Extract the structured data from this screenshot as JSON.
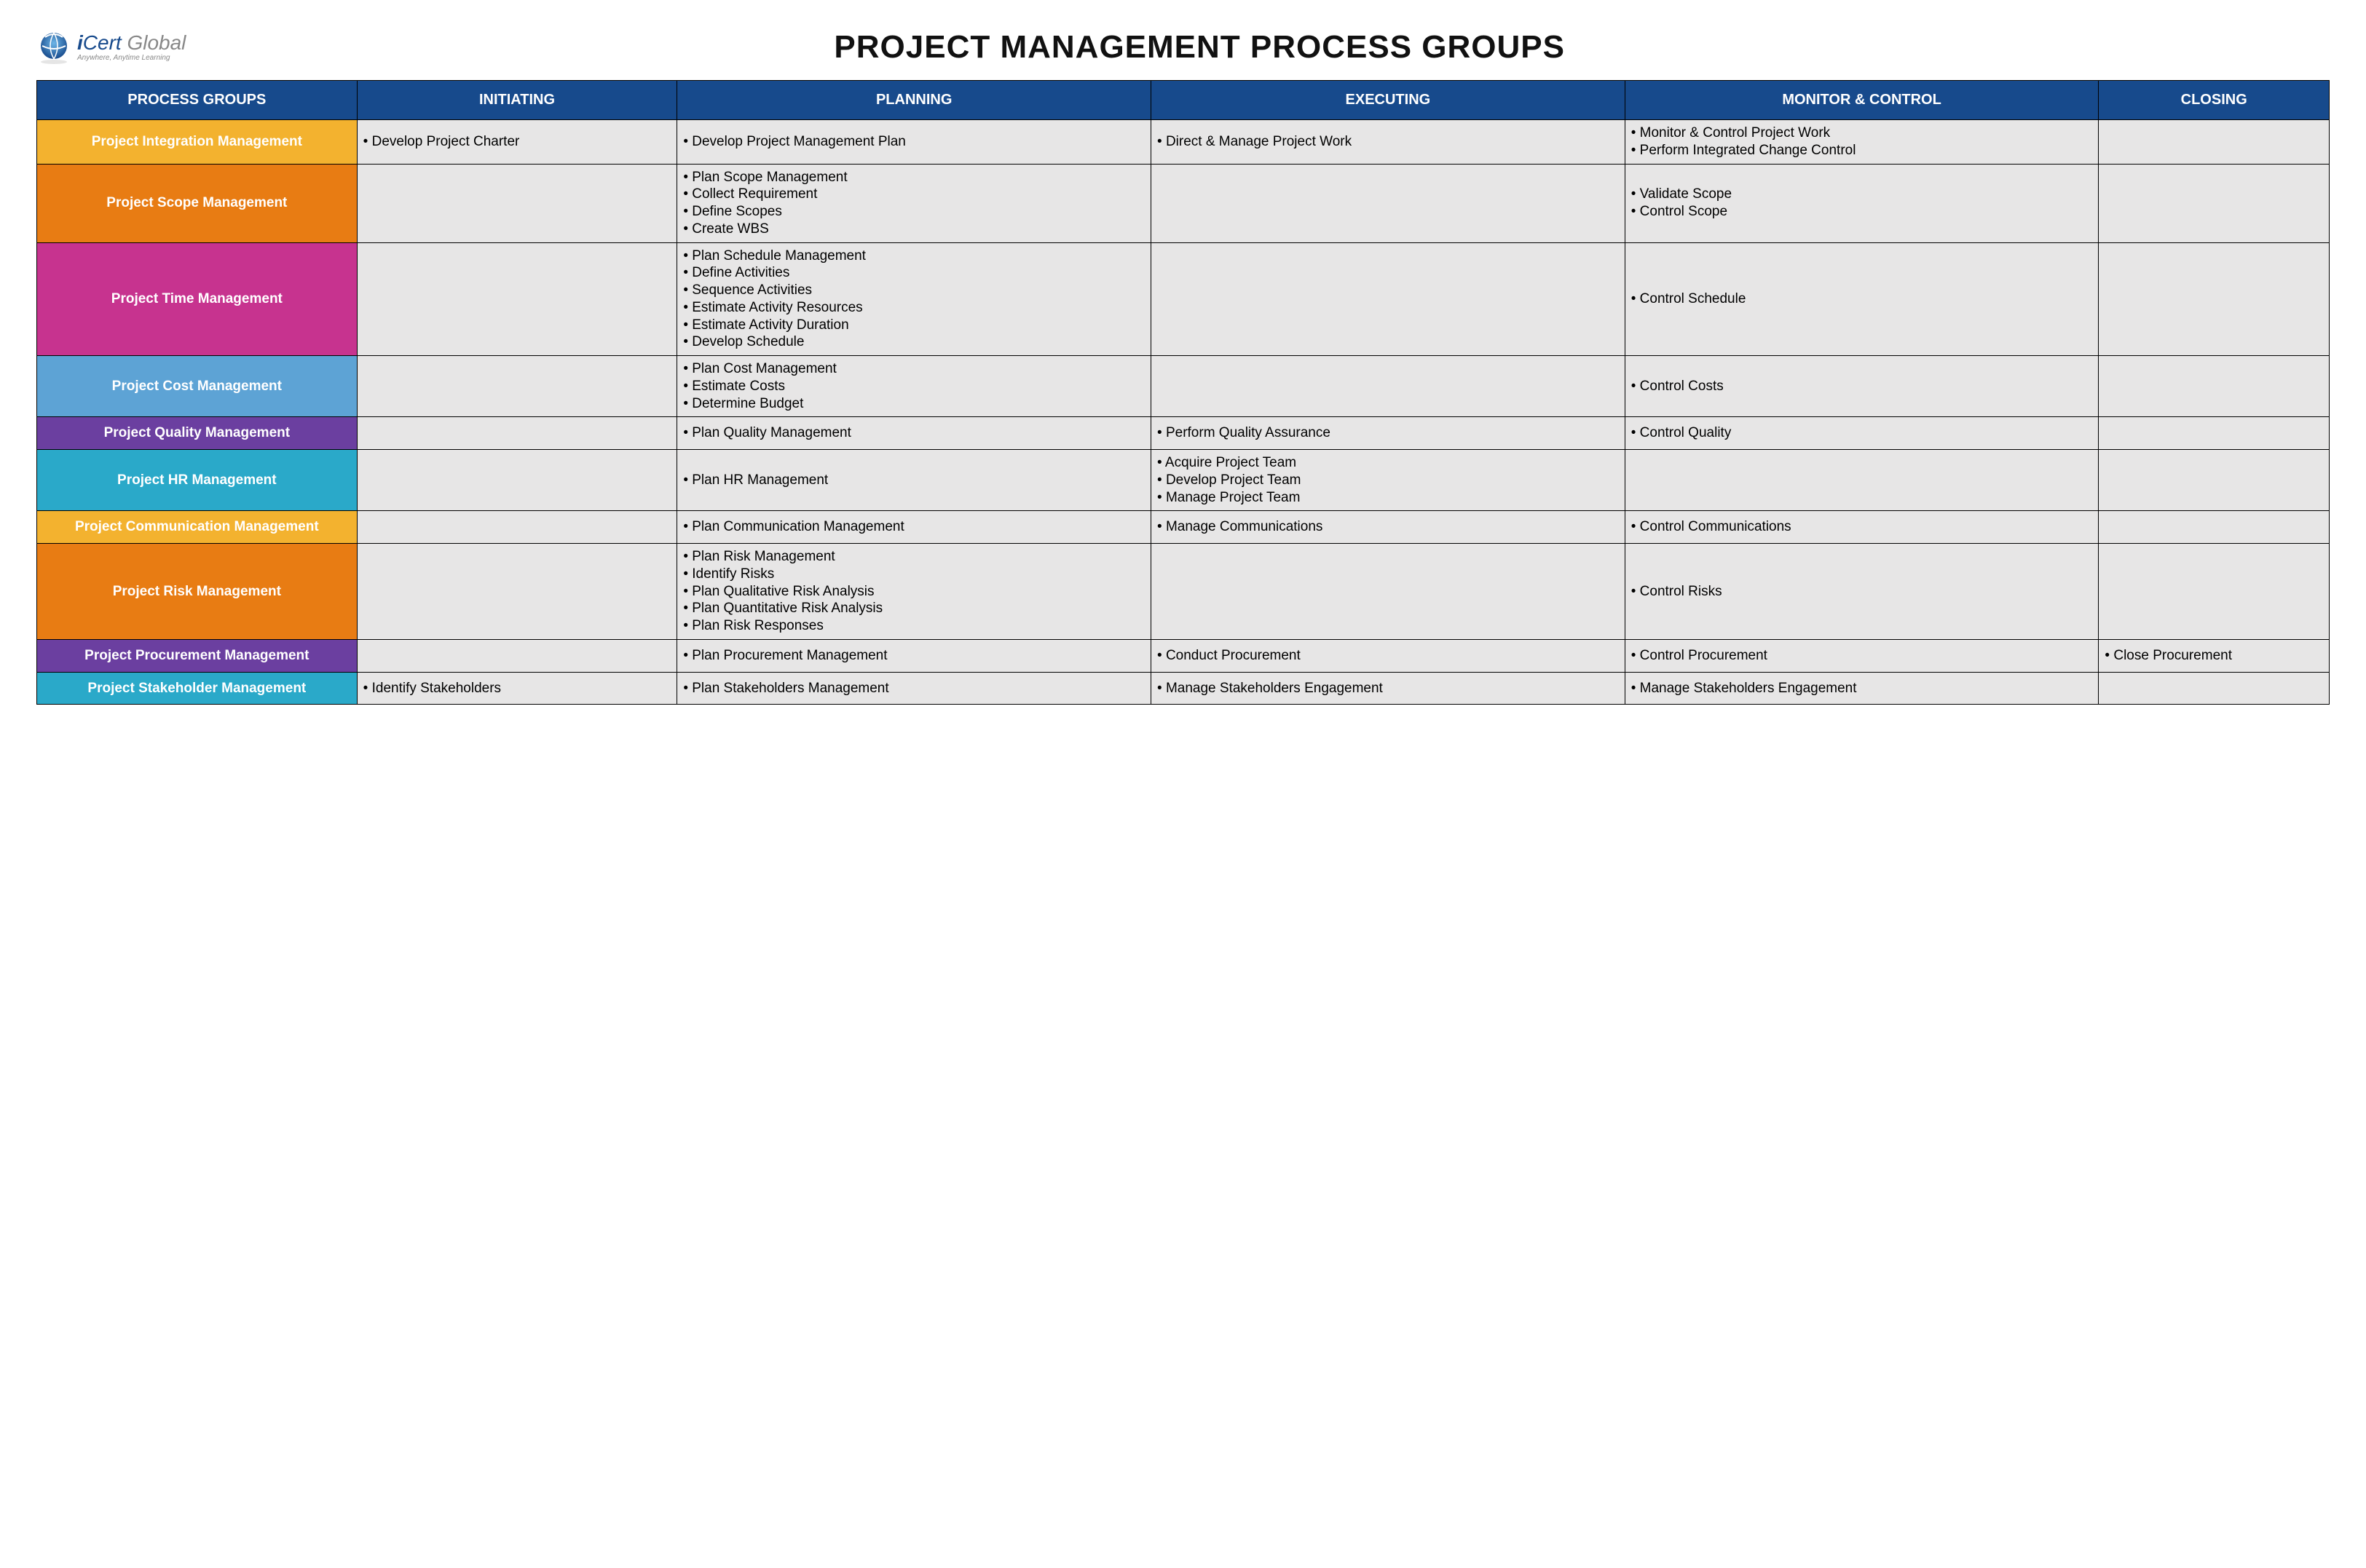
{
  "brand": {
    "name_i": "i",
    "name_cert": "Cert",
    "name_global": " Global",
    "tagline": "Anywhere, Anytime Learning"
  },
  "title": "PROJECT MANAGEMENT PROCESS GROUPS",
  "table": {
    "header_bg": "#174a8c",
    "header_fg": "#ffffff",
    "cell_bg": "#e7e6e6",
    "cell_fg": "#000000",
    "border_color": "#000000",
    "columns": [
      "PROCESS GROUPS",
      "INITIATING",
      "PLANNING",
      "EXECUTING",
      "MONITOR & CONTROL",
      "CLOSING"
    ],
    "rows": [
      {
        "label": "Project Integration Management",
        "color": "#f3b22f",
        "cells": [
          [
            "Develop Project Charter"
          ],
          [
            "Develop Project Management Plan"
          ],
          [
            "Direct & Manage Project Work"
          ],
          [
            "Monitor & Control Project Work",
            "Perform Integrated Change Control"
          ],
          []
        ]
      },
      {
        "label": "Project Scope Management",
        "color": "#e87c13",
        "cells": [
          [],
          [
            "Plan Scope Management",
            "Collect Requirement",
            "Define Scopes",
            "Create WBS"
          ],
          [],
          [
            "Validate Scope",
            "Control Scope"
          ],
          []
        ]
      },
      {
        "label": "Project Time Management",
        "color": "#c7338f",
        "cells": [
          [],
          [
            "Plan Schedule Management",
            "Define Activities",
            "Sequence Activities",
            "Estimate Activity Resources",
            "Estimate Activity Duration",
            "Develop Schedule"
          ],
          [],
          [
            "Control Schedule"
          ],
          []
        ]
      },
      {
        "label": "Project Cost Management",
        "color": "#5da3d5",
        "cells": [
          [],
          [
            "Plan Cost Management",
            "Estimate Costs",
            "Determine Budget"
          ],
          [],
          [
            "Control Costs"
          ],
          []
        ]
      },
      {
        "label": "Project Quality Management",
        "color": "#6b3fa0",
        "cells": [
          [],
          [
            "Plan Quality Management"
          ],
          [
            "Perform Quality Assurance"
          ],
          [
            "Control Quality"
          ],
          []
        ]
      },
      {
        "label": "Project HR Management",
        "color": "#2aa9c9",
        "cells": [
          [],
          [
            "Plan HR Management"
          ],
          [
            "Acquire Project Team",
            "Develop Project Team",
            "Manage Project Team"
          ],
          [],
          []
        ]
      },
      {
        "label": "Project Communication Management",
        "color": "#f3b22f",
        "cells": [
          [],
          [
            "Plan Communication Management"
          ],
          [
            "Manage Communications"
          ],
          [
            "Control Communications"
          ],
          []
        ]
      },
      {
        "label": "Project Risk Management",
        "color": "#e87c13",
        "cells": [
          [],
          [
            "Plan Risk Management",
            "Identify Risks",
            "Plan Qualitative Risk Analysis",
            "Plan Quantitative Risk Analysis",
            "Plan Risk Responses"
          ],
          [],
          [
            "Control Risks"
          ],
          []
        ]
      },
      {
        "label": "Project Procurement Management",
        "color": "#6b3fa0",
        "cells": [
          [],
          [
            "Plan Procurement Management"
          ],
          [
            "Conduct Procurement"
          ],
          [
            "Control Procurement"
          ],
          [
            "Close Procurement"
          ]
        ]
      },
      {
        "label": "Project Stakeholder Management",
        "color": "#2aa9c9",
        "cells": [
          [
            "Identify Stakeholders"
          ],
          [
            "Plan Stakeholders Management"
          ],
          [
            "Manage Stakeholders Engagement"
          ],
          [
            "Manage Stakeholders Engagement"
          ],
          []
        ]
      }
    ]
  }
}
